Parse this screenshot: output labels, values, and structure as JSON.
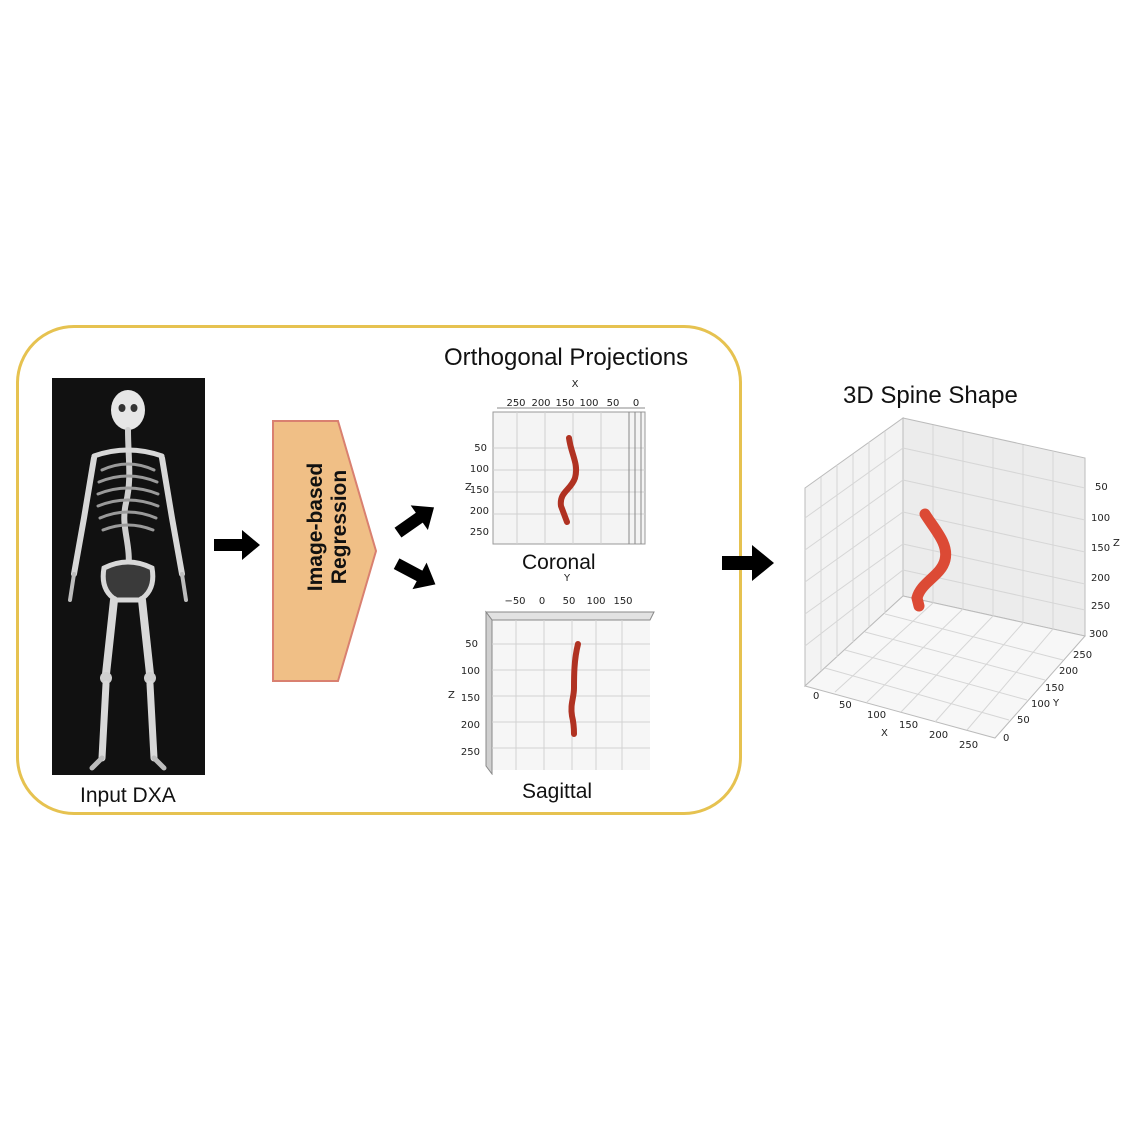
{
  "labels": {
    "input": "Input DXA",
    "regression_line1": "Image-based",
    "regression_line2": "Regression",
    "projections_title": "Orthogonal Projections",
    "coronal": "Coronal",
    "sagittal": "Sagittal",
    "spine_title": "3D Spine Shape"
  },
  "coronal_plot": {
    "x_axis_label": "X",
    "x_ticks": [
      "250",
      "200",
      "150",
      "100",
      "50",
      "0"
    ],
    "z_axis_label": "Z",
    "z_ticks": [
      "50",
      "100",
      "150",
      "200",
      "250"
    ]
  },
  "sagittal_plot": {
    "y_axis_label": "Y",
    "y_ticks": [
      "−50",
      "0",
      "50",
      "100",
      "150"
    ],
    "z_axis_label": "Z",
    "z_ticks": [
      "50",
      "100",
      "150",
      "200",
      "250"
    ]
  },
  "spine_3d": {
    "z_ticks": [
      "50",
      "100",
      "150",
      "200",
      "250",
      "300"
    ],
    "z_axis_label": "Z",
    "y_ticks": [
      "250",
      "200",
      "150",
      "100",
      "50",
      "0"
    ],
    "y_axis_label": "Y",
    "x_ticks": [
      "0",
      "50",
      "100",
      "150",
      "200",
      "250"
    ],
    "x_axis_label": "X"
  },
  "colors": {
    "frame": "#e6c250",
    "regression_fill": "#f0bf86",
    "regression_stroke": "#d98070",
    "spine_projection": "#b03222",
    "spine_3d": "#dc4a35"
  }
}
